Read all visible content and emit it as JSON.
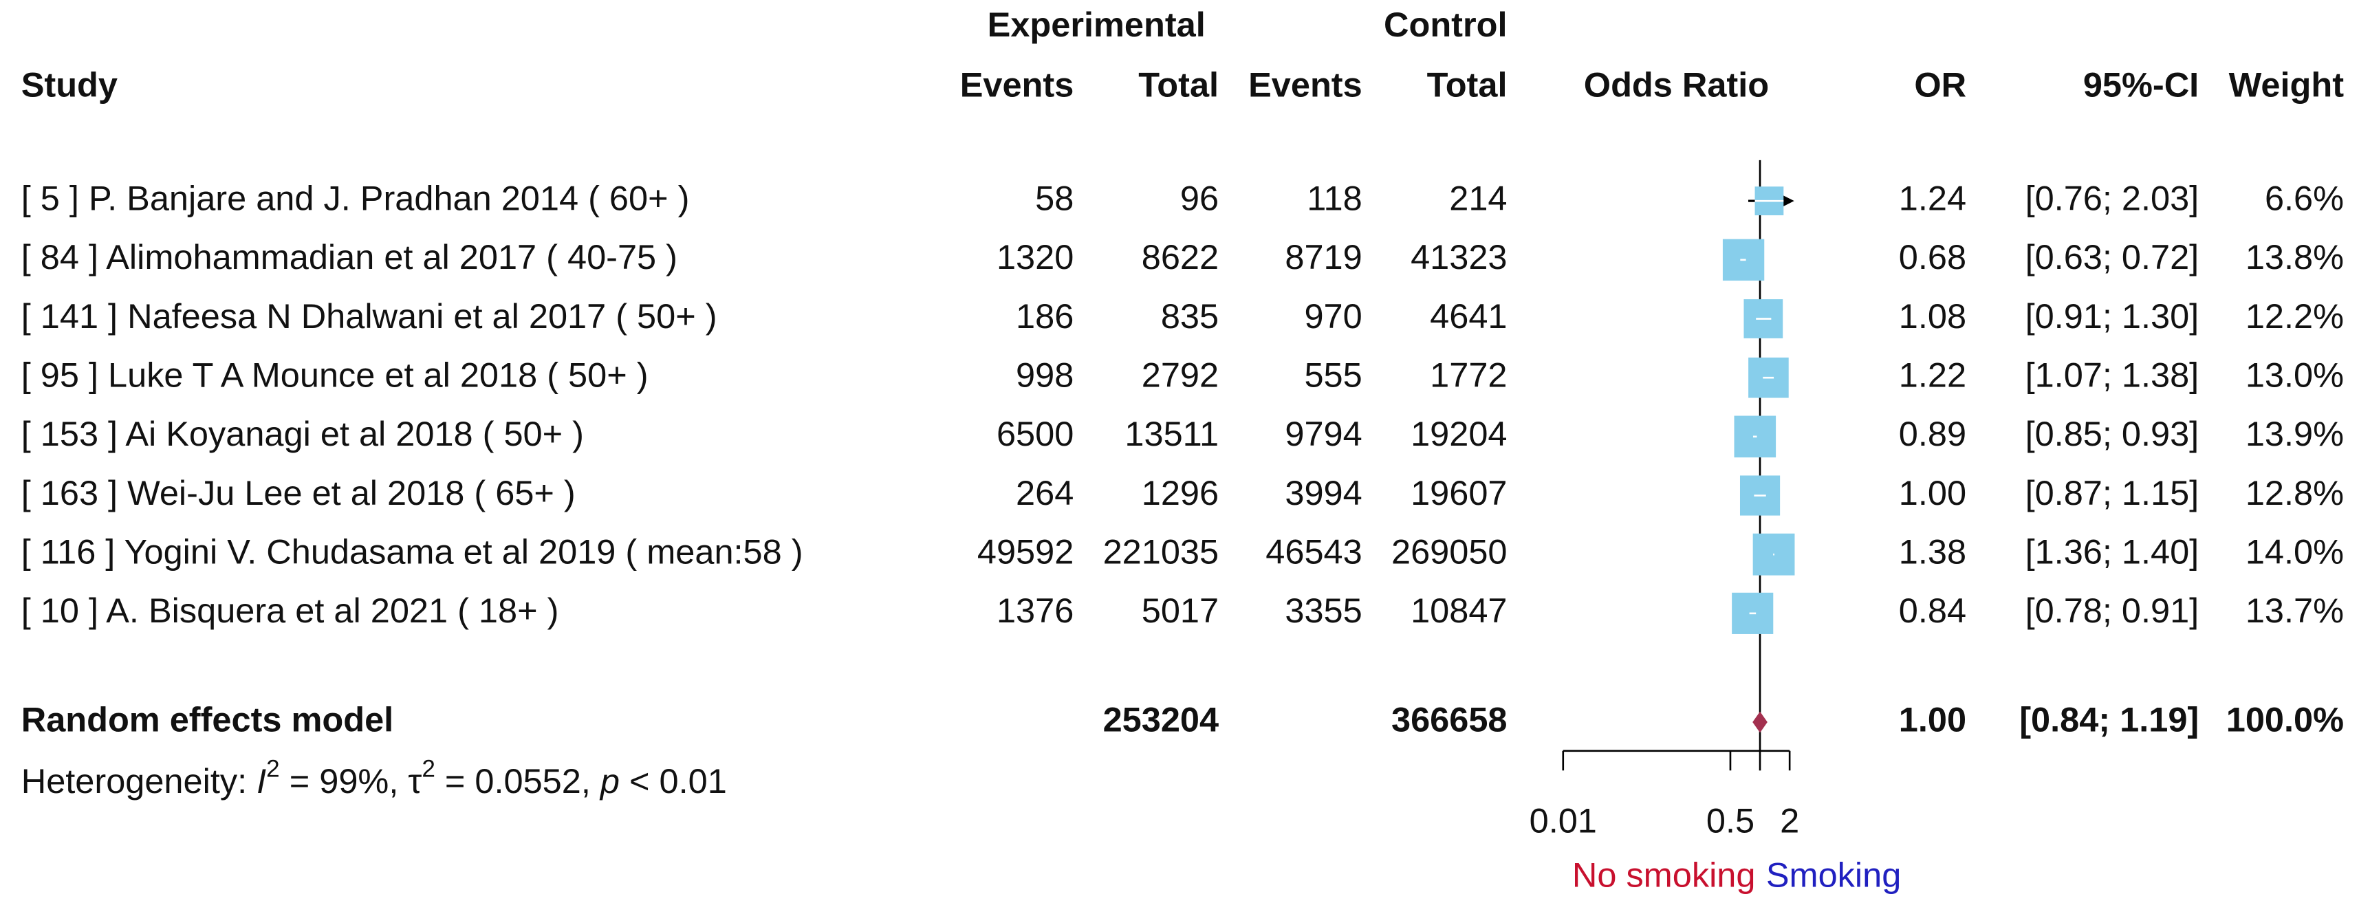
{
  "chart_data": {
    "type": "forest",
    "headers": {
      "experimental": "Experimental",
      "control": "Control",
      "study": "Study",
      "exp_events": "Events",
      "exp_total": "Total",
      "ctrl_events": "Events",
      "ctrl_total": "Total",
      "plot": "Odds Ratio",
      "or": "OR",
      "ci": "95%-CI",
      "weight": "Weight"
    },
    "categories": [
      "[ 5 ] P. Banjare and J. Pradhan 2014 ( 60+ )",
      "[ 84 ] Alimohammadian et al 2017 ( 40-75 )",
      "[ 141 ] Nafeesa N Dhalwani et al 2017 ( 50+ )",
      "[ 95 ] Luke T A Mounce et al 2018 ( 50+ )",
      "[ 153 ] Ai Koyanagi et al 2018 ( 50+ )",
      "[ 163 ] Wei-Ju Lee et al 2018 ( 65+ )",
      "[ 116 ] Yogini V. Chudasama et al 2019 ( mean:58 )",
      "[ 10 ] A. Bisquera et al 2021 ( 18+ )"
    ],
    "exp_events": [
      58,
      1320,
      186,
      998,
      6500,
      264,
      49592,
      1376
    ],
    "exp_total": [
      96,
      8622,
      835,
      2792,
      13511,
      1296,
      221035,
      5017
    ],
    "ctrl_events": [
      118,
      8719,
      970,
      555,
      9794,
      3994,
      46543,
      3355
    ],
    "ctrl_total": [
      214,
      41323,
      4641,
      1772,
      19204,
      19607,
      269050,
      10847
    ],
    "or": [
      1.24,
      0.68,
      1.08,
      1.22,
      0.89,
      1.0,
      1.38,
      0.84
    ],
    "or_labels": [
      "1.24",
      "0.68",
      "1.08",
      "1.22",
      "0.89",
      "1.00",
      "1.38",
      "0.84"
    ],
    "ci_low": [
      0.76,
      0.63,
      0.91,
      1.07,
      0.85,
      0.87,
      1.36,
      0.78
    ],
    "ci_high": [
      2.03,
      0.72,
      1.3,
      1.38,
      0.93,
      1.15,
      1.4,
      0.91
    ],
    "ci_labels": [
      "[0.76; 2.03]",
      "[0.63; 0.72]",
      "[0.91; 1.30]",
      "[1.07; 1.38]",
      "[0.85; 0.93]",
      "[0.87; 1.15]",
      "[1.36; 1.40]",
      "[0.78; 0.91]"
    ],
    "weight": [
      6.6,
      13.8,
      12.2,
      13.0,
      13.9,
      12.8,
      14.0,
      13.7
    ],
    "weight_labels": [
      "6.6%",
      "13.8%",
      "12.2%",
      "13.0%",
      "13.9%",
      "12.8%",
      "14.0%",
      "13.7%"
    ],
    "random": {
      "name": "Random effects model",
      "exp_total": 253204,
      "ctrl_total": 366658,
      "or": 1.0,
      "or_label": "1.00",
      "ci_low": 0.84,
      "ci_high": 1.19,
      "ci_label": "[0.84; 1.19]",
      "weight_label": "100.0%",
      "color": "#a3304f"
    },
    "heterogeneity": [
      "Heterogeneity: ",
      "I",
      "2",
      " = 99%, ",
      "τ",
      "2",
      " = 0.0552, ",
      "p",
      " < 0.01"
    ],
    "box_color": "#87ceeb",
    "log_scale": true,
    "xlim": [
      0.01,
      2
    ],
    "xticks": [
      0.01,
      0.5,
      2
    ],
    "reference": 1,
    "favours": [
      {
        "label": "No smoking",
        "color": "#c8102e"
      },
      {
        "label": "Smoking",
        "color": "#2020c0"
      }
    ]
  }
}
